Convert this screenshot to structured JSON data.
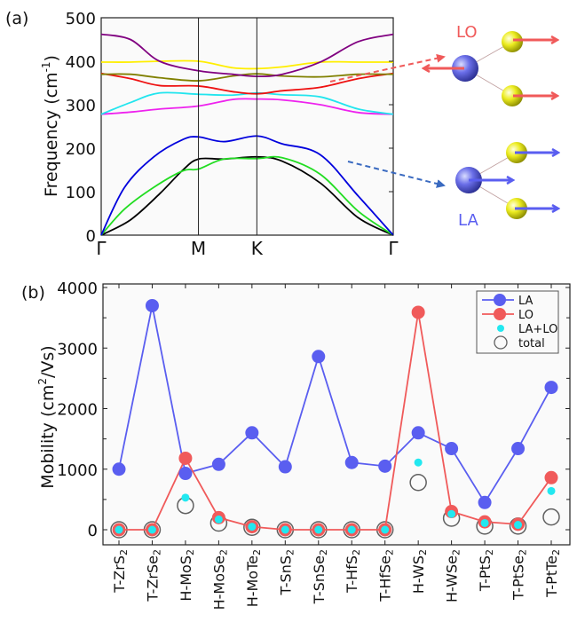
{
  "chart_data": [
    {
      "type": "line",
      "panel_label": "(a)",
      "title": "",
      "ylabel": "Frequency (cm⁻¹)",
      "ylabel_main": "Frequency (cm",
      "ylabel_sup": "-1",
      "ylabel_end": ")",
      "ylim": [
        0,
        500
      ],
      "yticks": [
        "0",
        "100",
        "200",
        "300",
        "400",
        "500"
      ],
      "xlabels": [
        "Γ",
        "M",
        "K",
        "Γ"
      ],
      "x_path_positions": [
        0,
        0.333,
        0.533,
        1.0
      ],
      "grid": false,
      "series": [
        {
          "name": "acoustic-1",
          "color": "#000000",
          "x": [
            0,
            0.1,
            0.2,
            0.28,
            0.333,
            0.42,
            0.533,
            0.62,
            0.75,
            0.88,
            1.0
          ],
          "values": [
            0,
            35,
            95,
            150,
            175,
            175,
            180,
            170,
            120,
            40,
            0
          ]
        },
        {
          "name": "acoustic-2",
          "color": "#22dd22",
          "x": [
            0,
            0.08,
            0.18,
            0.28,
            0.333,
            0.42,
            0.533,
            0.62,
            0.75,
            0.88,
            1.0
          ],
          "values": [
            0,
            60,
            110,
            148,
            152,
            175,
            176,
            178,
            140,
            55,
            0
          ]
        },
        {
          "name": "acoustic-3",
          "color": "#0000dd",
          "x": [
            0,
            0.08,
            0.18,
            0.28,
            0.333,
            0.42,
            0.533,
            0.62,
            0.75,
            0.88,
            1.0
          ],
          "values": [
            0,
            110,
            180,
            220,
            226,
            215,
            228,
            210,
            185,
            90,
            0
          ]
        },
        {
          "name": "optical-magenta",
          "color": "#ee22ee",
          "x": [
            0,
            0.1,
            0.2,
            0.333,
            0.45,
            0.533,
            0.62,
            0.75,
            0.88,
            1.0
          ],
          "values": [
            278,
            283,
            290,
            297,
            312,
            313,
            311,
            300,
            282,
            278
          ]
        },
        {
          "name": "optical-cyan",
          "color": "#22e5ee",
          "x": [
            0,
            0.1,
            0.2,
            0.333,
            0.45,
            0.533,
            0.62,
            0.75,
            0.88,
            1.0
          ],
          "values": [
            278,
            305,
            327,
            324,
            322,
            327,
            323,
            318,
            290,
            278
          ]
        },
        {
          "name": "optical-red",
          "color": "#ee1111",
          "x": [
            0,
            0.1,
            0.2,
            0.333,
            0.45,
            0.533,
            0.62,
            0.75,
            0.88,
            1.0
          ],
          "values": [
            372,
            360,
            344,
            343,
            330,
            325,
            332,
            340,
            360,
            372
          ]
        },
        {
          "name": "optical-olive",
          "color": "#808000",
          "x": [
            0,
            0.1,
            0.2,
            0.333,
            0.45,
            0.533,
            0.62,
            0.75,
            0.88,
            1.0
          ],
          "values": [
            370,
            370,
            362,
            355,
            366,
            371,
            366,
            364,
            370,
            370
          ]
        },
        {
          "name": "optical-yellow",
          "color": "#ffee00",
          "x": [
            0,
            0.1,
            0.2,
            0.333,
            0.45,
            0.533,
            0.62,
            0.75,
            0.88,
            1.0
          ],
          "values": [
            398,
            398,
            400,
            400,
            385,
            383,
            387,
            398,
            398,
            398
          ]
        },
        {
          "name": "optical-purple",
          "color": "#800080",
          "x": [
            0,
            0.1,
            0.2,
            0.333,
            0.45,
            0.533,
            0.62,
            0.75,
            0.88,
            1.0
          ],
          "values": [
            462,
            450,
            400,
            378,
            370,
            365,
            370,
            398,
            445,
            462
          ]
        }
      ],
      "annotations": [
        {
          "text": "LO",
          "color": "#f05a5a"
        },
        {
          "text": "LA",
          "color": "#5a5ef0"
        }
      ]
    },
    {
      "type": "line",
      "panel_label": "(b)",
      "title": "",
      "ylabel_main": "Mobility (cm",
      "ylabel_sup": "2",
      "ylabel_end": "/Vs)",
      "ylabel": "Mobility (cm²/Vs)",
      "ylim": [
        -230,
        4000
      ],
      "yticks": [
        "0",
        "1000",
        "2000",
        "3000",
        "4000"
      ],
      "legend_position": "top-right",
      "grid": false,
      "categories": [
        {
          "prefix": "T-ZrS",
          "sub": "2"
        },
        {
          "prefix": "T-ZrSe",
          "sub": "2"
        },
        {
          "prefix": "H-MoS",
          "sub": "2"
        },
        {
          "prefix": "H-MoSe",
          "sub": "2"
        },
        {
          "prefix": "H-MoTe",
          "sub": "2"
        },
        {
          "prefix": "T-SnS",
          "sub": "2"
        },
        {
          "prefix": "T-SnSe",
          "sub": "2"
        },
        {
          "prefix": "T-HfS",
          "sub": "2"
        },
        {
          "prefix": "T-HfSe",
          "sub": "2"
        },
        {
          "prefix": "H-WS",
          "sub": "2"
        },
        {
          "prefix": "H-WSe",
          "sub": "2"
        },
        {
          "prefix": "T-PtS",
          "sub": "2"
        },
        {
          "prefix": "T-PtSe",
          "sub": "2"
        },
        {
          "prefix": "T-PtTe",
          "sub": "2"
        }
      ],
      "series": [
        {
          "name": "LA",
          "color": "#5a5ef0",
          "style": "line-marker",
          "values": [
            1000,
            3700,
            930,
            1080,
            1600,
            1040,
            2860,
            1110,
            1050,
            1600,
            1340,
            450,
            1340,
            2350
          ]
        },
        {
          "name": "LO",
          "color": "#f05a5a",
          "style": "line-marker",
          "values": [
            0,
            0,
            1180,
            200,
            50,
            0,
            0,
            0,
            0,
            3590,
            300,
            130,
            90,
            860
          ]
        },
        {
          "name": "LA+LO",
          "color": "#22e8f0",
          "style": "dot",
          "values": [
            0,
            0,
            530,
            170,
            50,
            0,
            0,
            0,
            0,
            1110,
            260,
            110,
            80,
            640
          ]
        },
        {
          "name": "total",
          "color": "#606060",
          "style": "open-circle",
          "values": [
            0,
            0,
            400,
            110,
            40,
            0,
            0,
            0,
            0,
            780,
            190,
            60,
            60,
            210
          ]
        }
      ],
      "legend": [
        "LA",
        "LO",
        "LA+LO",
        "total"
      ]
    }
  ]
}
